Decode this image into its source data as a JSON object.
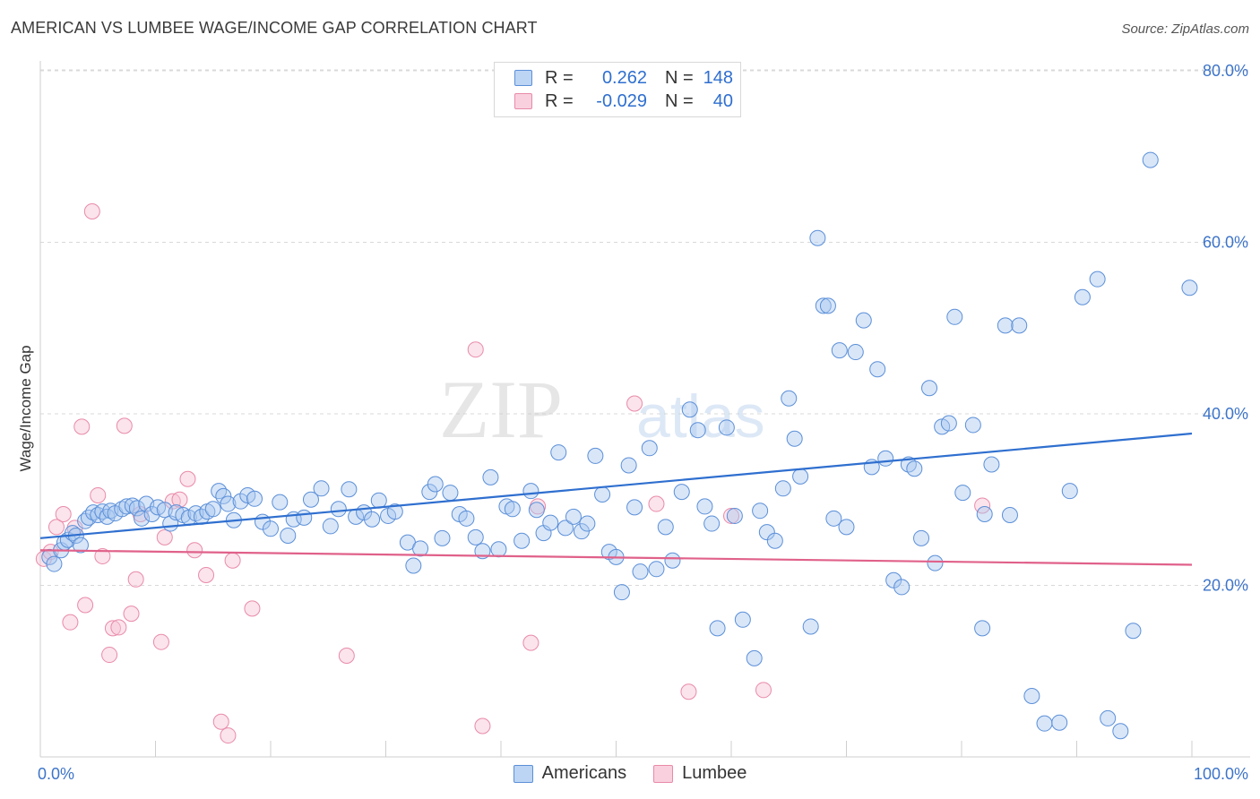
{
  "title": "AMERICAN VS LUMBEE WAGE/INCOME GAP CORRELATION CHART",
  "source": "Source: ZipAtlas.com",
  "watermark": {
    "zip": "ZIP",
    "atlas": "atlas"
  },
  "legend": {
    "rows": [
      {
        "r_label": "R =",
        "r_value": "0.262",
        "n_label": "N =",
        "n_value": "148"
      },
      {
        "r_label": "R =",
        "r_value": "-0.029",
        "n_label": "N =",
        "n_value": "40"
      }
    ]
  },
  "bottom_legend": {
    "americans": "Americans",
    "lumbee": "Lumbee"
  },
  "colors": {
    "blue_fill": "#a9c8f0",
    "blue_stroke": "#5b8fd8",
    "blue_line": "#2f6fcf",
    "pink_fill": "#f7c3d4",
    "pink_stroke": "#e98aa8",
    "pink_line": "#e0618a",
    "axis_label": "#3d74c9",
    "grid": "#d9d9d9"
  },
  "chart_data": {
    "type": "scatter",
    "title": "AMERICAN VS LUMBEE WAGE/INCOME GAP CORRELATION CHART",
    "xlabel": "",
    "ylabel": "Wage/Income Gap",
    "xlim": [
      0,
      100
    ],
    "ylim": [
      0,
      82
    ],
    "x_tick_labels": [
      "0.0%",
      "100.0%"
    ],
    "y_ticks": [
      20,
      40,
      60,
      80
    ],
    "y_tick_labels": [
      "20.0%",
      "40.0%",
      "60.0%",
      "80.0%"
    ],
    "grid": true,
    "legend_position": "top-center",
    "series": [
      {
        "name": "Americans",
        "trend": {
          "x": [
            0,
            100
          ],
          "y": [
            25.5,
            37.7
          ]
        },
        "points": [
          [
            0.8,
            23.3
          ],
          [
            1.2,
            22.5
          ],
          [
            1.8,
            24.1
          ],
          [
            2.1,
            25.0
          ],
          [
            2.4,
            25.3
          ],
          [
            2.8,
            26.1
          ],
          [
            3.1,
            25.8
          ],
          [
            3.5,
            24.7
          ],
          [
            3.9,
            27.5
          ],
          [
            4.2,
            27.9
          ],
          [
            4.6,
            28.5
          ],
          [
            5.0,
            28.2
          ],
          [
            5.4,
            28.6
          ],
          [
            5.8,
            28.0
          ],
          [
            6.1,
            28.7
          ],
          [
            6.5,
            28.4
          ],
          [
            7.1,
            28.9
          ],
          [
            7.5,
            29.2
          ],
          [
            8.0,
            29.3
          ],
          [
            8.4,
            29.0
          ],
          [
            8.8,
            27.8
          ],
          [
            9.2,
            29.5
          ],
          [
            9.7,
            28.3
          ],
          [
            10.2,
            29.1
          ],
          [
            10.8,
            28.8
          ],
          [
            11.3,
            27.2
          ],
          [
            11.8,
            28.5
          ],
          [
            12.4,
            28.2
          ],
          [
            12.9,
            27.9
          ],
          [
            13.5,
            28.4
          ],
          [
            14.0,
            28.0
          ],
          [
            14.5,
            28.6
          ],
          [
            15.0,
            28.9
          ],
          [
            15.5,
            31.0
          ],
          [
            15.9,
            30.4
          ],
          [
            16.3,
            29.5
          ],
          [
            16.8,
            27.6
          ],
          [
            17.4,
            29.8
          ],
          [
            18.0,
            30.5
          ],
          [
            18.6,
            30.1
          ],
          [
            19.3,
            27.4
          ],
          [
            20.0,
            26.6
          ],
          [
            20.8,
            29.7
          ],
          [
            21.5,
            25.8
          ],
          [
            22.0,
            27.7
          ],
          [
            22.9,
            27.9
          ],
          [
            23.5,
            30.0
          ],
          [
            24.4,
            31.3
          ],
          [
            25.2,
            26.9
          ],
          [
            25.9,
            28.9
          ],
          [
            26.8,
            31.2
          ],
          [
            27.4,
            28.0
          ],
          [
            28.1,
            28.5
          ],
          [
            28.8,
            27.7
          ],
          [
            29.4,
            29.9
          ],
          [
            30.2,
            28.1
          ],
          [
            30.8,
            28.6
          ],
          [
            31.9,
            25.0
          ],
          [
            32.4,
            22.3
          ],
          [
            33.0,
            24.3
          ],
          [
            33.8,
            30.9
          ],
          [
            34.3,
            31.8
          ],
          [
            34.9,
            25.5
          ],
          [
            35.6,
            30.8
          ],
          [
            36.4,
            28.3
          ],
          [
            37.0,
            27.8
          ],
          [
            37.8,
            25.6
          ],
          [
            38.4,
            24.0
          ],
          [
            39.1,
            32.6
          ],
          [
            39.8,
            24.2
          ],
          [
            40.5,
            29.2
          ],
          [
            41.0,
            28.9
          ],
          [
            41.8,
            25.2
          ],
          [
            42.6,
            31.0
          ],
          [
            43.1,
            28.8
          ],
          [
            43.7,
            26.1
          ],
          [
            44.3,
            27.3
          ],
          [
            45.0,
            35.5
          ],
          [
            45.6,
            26.7
          ],
          [
            46.3,
            28.0
          ],
          [
            47.0,
            26.3
          ],
          [
            47.5,
            27.2
          ],
          [
            48.2,
            35.1
          ],
          [
            48.8,
            30.6
          ],
          [
            49.4,
            23.9
          ],
          [
            50.0,
            23.3
          ],
          [
            50.5,
            19.2
          ],
          [
            51.1,
            34.0
          ],
          [
            51.6,
            29.1
          ],
          [
            52.1,
            21.6
          ],
          [
            52.9,
            36.0
          ],
          [
            53.5,
            21.9
          ],
          [
            54.3,
            26.8
          ],
          [
            54.9,
            22.9
          ],
          [
            55.7,
            30.9
          ],
          [
            56.4,
            40.5
          ],
          [
            57.1,
            38.1
          ],
          [
            57.7,
            29.2
          ],
          [
            58.3,
            27.2
          ],
          [
            58.8,
            15.0
          ],
          [
            59.6,
            38.4
          ],
          [
            60.3,
            28.1
          ],
          [
            61.0,
            16.0
          ],
          [
            62.0,
            11.5
          ],
          [
            62.5,
            28.7
          ],
          [
            63.1,
            26.2
          ],
          [
            63.8,
            25.2
          ],
          [
            64.5,
            31.3
          ],
          [
            65.0,
            41.8
          ],
          [
            65.5,
            37.1
          ],
          [
            66.0,
            32.7
          ],
          [
            66.9,
            15.2
          ],
          [
            67.5,
            60.5
          ],
          [
            68.0,
            52.6
          ],
          [
            68.4,
            52.6
          ],
          [
            68.9,
            27.8
          ],
          [
            69.4,
            47.4
          ],
          [
            70.0,
            26.8
          ],
          [
            70.8,
            47.2
          ],
          [
            71.5,
            50.9
          ],
          [
            72.2,
            33.8
          ],
          [
            72.7,
            45.2
          ],
          [
            73.4,
            34.8
          ],
          [
            74.1,
            20.6
          ],
          [
            74.8,
            19.8
          ],
          [
            75.4,
            34.1
          ],
          [
            75.9,
            33.6
          ],
          [
            76.5,
            25.5
          ],
          [
            77.2,
            43.0
          ],
          [
            77.7,
            22.6
          ],
          [
            78.3,
            38.5
          ],
          [
            78.9,
            38.9
          ],
          [
            79.4,
            51.3
          ],
          [
            80.1,
            30.8
          ],
          [
            81.0,
            38.7
          ],
          [
            81.8,
            15.0
          ],
          [
            82.0,
            28.3
          ],
          [
            82.6,
            34.1
          ],
          [
            83.8,
            50.3
          ],
          [
            84.2,
            28.2
          ],
          [
            85.0,
            50.3
          ],
          [
            86.1,
            7.1
          ],
          [
            87.2,
            3.9
          ],
          [
            88.5,
            4.0
          ],
          [
            89.4,
            31.0
          ],
          [
            90.5,
            53.6
          ],
          [
            91.8,
            55.7
          ],
          [
            92.7,
            4.5
          ],
          [
            93.8,
            3.0
          ],
          [
            94.9,
            14.7
          ],
          [
            96.4,
            69.6
          ],
          [
            99.8,
            54.7
          ]
        ]
      },
      {
        "name": "Lumbee",
        "trend": {
          "x": [
            0,
            100
          ],
          "y": [
            24.1,
            22.4
          ]
        },
        "points": [
          [
            0.3,
            23.1
          ],
          [
            0.9,
            23.9
          ],
          [
            1.4,
            26.8
          ],
          [
            2.0,
            28.3
          ],
          [
            2.6,
            15.7
          ],
          [
            3.0,
            26.7
          ],
          [
            3.6,
            38.5
          ],
          [
            3.9,
            17.7
          ],
          [
            4.5,
            63.6
          ],
          [
            5.0,
            30.5
          ],
          [
            5.4,
            23.4
          ],
          [
            6.0,
            11.9
          ],
          [
            6.3,
            15.0
          ],
          [
            6.8,
            15.1
          ],
          [
            7.3,
            38.6
          ],
          [
            7.9,
            16.7
          ],
          [
            8.3,
            20.7
          ],
          [
            8.7,
            28.3
          ],
          [
            10.5,
            13.4
          ],
          [
            10.8,
            25.6
          ],
          [
            11.5,
            29.8
          ],
          [
            12.1,
            30.0
          ],
          [
            12.8,
            32.4
          ],
          [
            13.4,
            24.1
          ],
          [
            14.4,
            21.2
          ],
          [
            15.7,
            4.1
          ],
          [
            16.3,
            2.5
          ],
          [
            16.7,
            22.9
          ],
          [
            18.4,
            17.3
          ],
          [
            26.6,
            11.8
          ],
          [
            37.8,
            47.5
          ],
          [
            38.4,
            3.6
          ],
          [
            42.6,
            13.3
          ],
          [
            43.2,
            29.2
          ],
          [
            51.6,
            41.2
          ],
          [
            53.5,
            29.5
          ],
          [
            56.3,
            7.6
          ],
          [
            60.0,
            28.1
          ],
          [
            62.8,
            7.8
          ],
          [
            81.8,
            29.3
          ]
        ]
      }
    ]
  }
}
